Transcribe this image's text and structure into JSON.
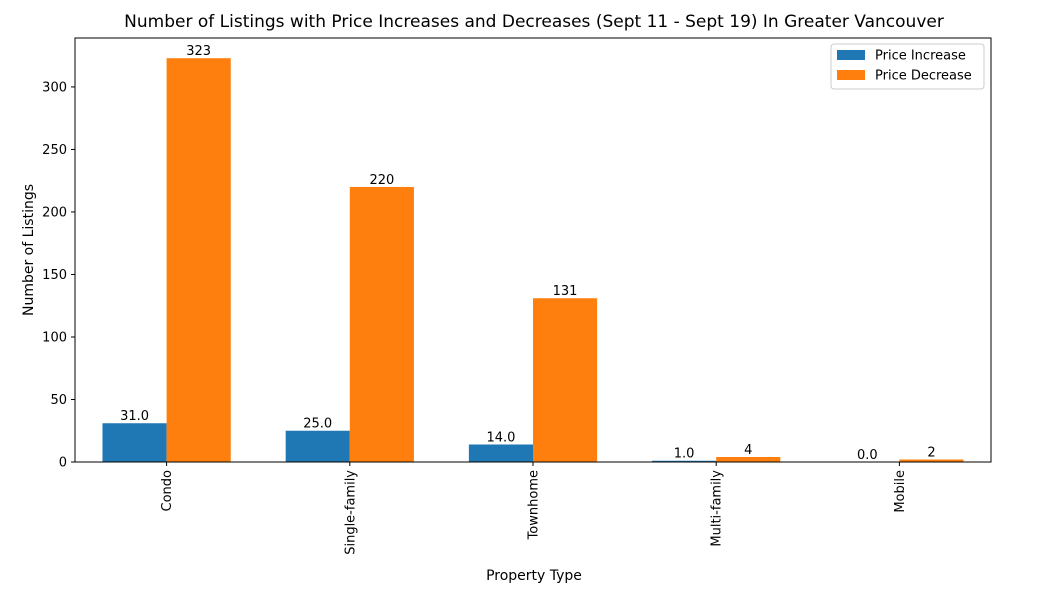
{
  "chart_data": {
    "type": "bar",
    "title": "Number of Listings with Price Increases and Decreases (Sept 11 - Sept 19) In Greater Vancouver",
    "xlabel": "Property Type",
    "ylabel": "Number of Listings",
    "categories": [
      "Condo",
      "Single-family",
      "Townhome",
      "Multi-family",
      "Mobile"
    ],
    "series": [
      {
        "name": "Price Increase",
        "values": [
          31,
          25,
          14,
          1,
          0
        ],
        "value_labels": [
          "31.0",
          "25.0",
          "14.0",
          "1.0",
          "0.0"
        ],
        "color": "#1f77b4"
      },
      {
        "name": "Price Decrease",
        "values": [
          323,
          220,
          131,
          4,
          2
        ],
        "value_labels": [
          "323",
          "220",
          "131",
          "4",
          "2"
        ],
        "color": "#ff7f0e"
      }
    ],
    "yticks": [
      0,
      50,
      100,
      150,
      200,
      250,
      300
    ],
    "ylim": [
      0,
      339.15
    ],
    "grid": false,
    "legend_position": "top-right"
  }
}
